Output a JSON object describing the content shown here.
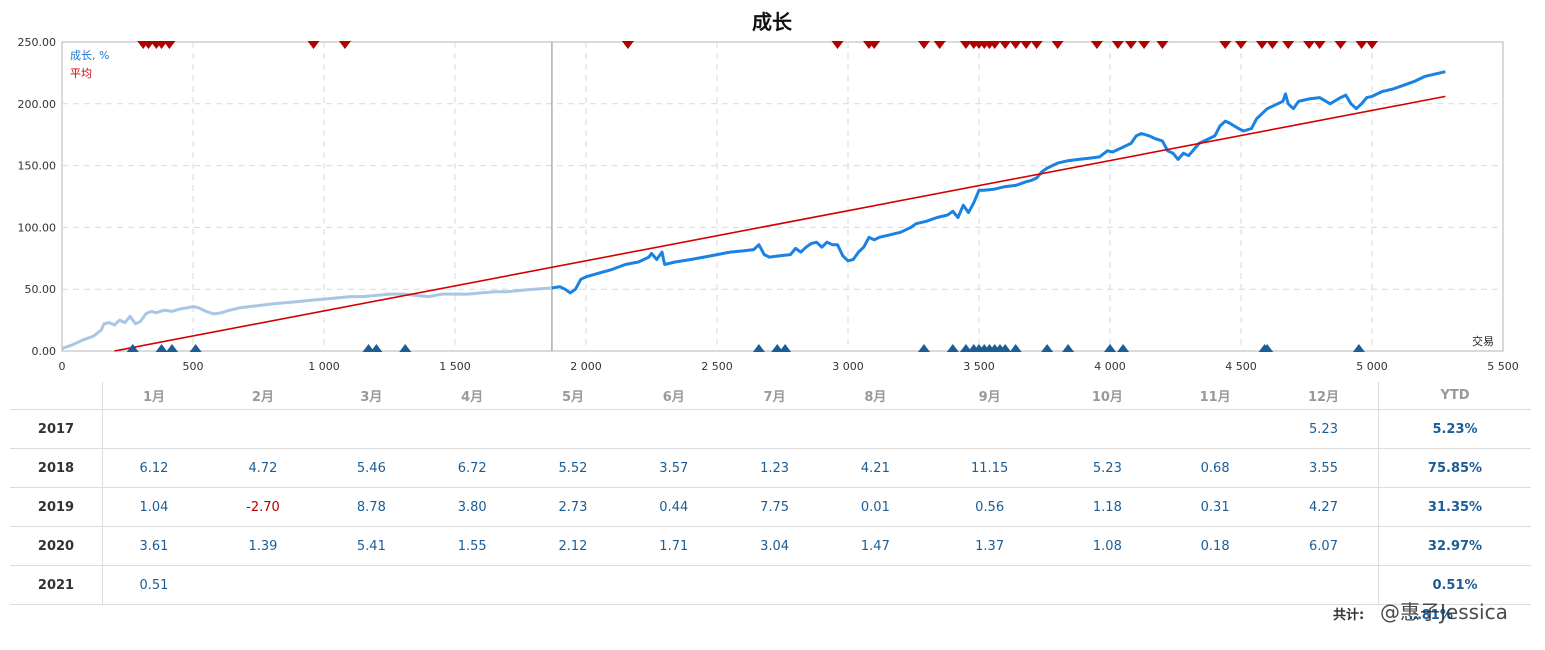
{
  "chart_data": {
    "type": "line",
    "title": "成长",
    "legend": [
      "成长, %",
      "平均"
    ],
    "x_axis_label": "交易",
    "xlim": [
      0,
      5500
    ],
    "ylim": [
      0,
      250
    ],
    "x_ticks": [
      "0",
      "500",
      "1 000",
      "1 500",
      "2 000",
      "2 500",
      "3 000",
      "3 500",
      "4 000",
      "4 500",
      "5 000",
      "5 500"
    ],
    "y_ticks": [
      "0.00",
      "50.00",
      "100.00",
      "150.00",
      "200.00",
      "250.00"
    ],
    "grid": true,
    "legend_position": "top-left",
    "history_split_x": 1870,
    "series": [
      {
        "name": "成长, %",
        "color_history": "#a9c6e4",
        "color": "#1a82e2",
        "points": [
          [
            0,
            2
          ],
          [
            40,
            5
          ],
          [
            80,
            9
          ],
          [
            120,
            12
          ],
          [
            150,
            17
          ],
          [
            160,
            22
          ],
          [
            180,
            23
          ],
          [
            200,
            21
          ],
          [
            220,
            25
          ],
          [
            240,
            23
          ],
          [
            260,
            28
          ],
          [
            280,
            22
          ],
          [
            300,
            24
          ],
          [
            320,
            30
          ],
          [
            340,
            32
          ],
          [
            360,
            31
          ],
          [
            390,
            33
          ],
          [
            420,
            32
          ],
          [
            450,
            34
          ],
          [
            480,
            35
          ],
          [
            500,
            36
          ],
          [
            520,
            35
          ],
          [
            550,
            32
          ],
          [
            580,
            30
          ],
          [
            610,
            31
          ],
          [
            640,
            33
          ],
          [
            680,
            35
          ],
          [
            720,
            36
          ],
          [
            760,
            37
          ],
          [
            800,
            38
          ],
          [
            850,
            39
          ],
          [
            900,
            40
          ],
          [
            950,
            41
          ],
          [
            1000,
            42
          ],
          [
            1050,
            43
          ],
          [
            1100,
            44
          ],
          [
            1150,
            44
          ],
          [
            1200,
            45
          ],
          [
            1250,
            46
          ],
          [
            1300,
            46
          ],
          [
            1350,
            45
          ],
          [
            1400,
            44
          ],
          [
            1450,
            46
          ],
          [
            1500,
            46
          ],
          [
            1550,
            46
          ],
          [
            1600,
            47
          ],
          [
            1650,
            48
          ],
          [
            1700,
            48
          ],
          [
            1750,
            49
          ],
          [
            1800,
            50
          ],
          [
            1870,
            51
          ],
          [
            1870,
            51
          ],
          [
            1900,
            52
          ],
          [
            1920,
            50
          ],
          [
            1940,
            47
          ],
          [
            1960,
            50
          ],
          [
            1980,
            58
          ],
          [
            2000,
            60
          ],
          [
            2050,
            63
          ],
          [
            2100,
            66
          ],
          [
            2150,
            70
          ],
          [
            2200,
            72
          ],
          [
            2240,
            76
          ],
          [
            2250,
            79
          ],
          [
            2270,
            74
          ],
          [
            2290,
            80
          ],
          [
            2300,
            70
          ],
          [
            2340,
            72
          ],
          [
            2400,
            74
          ],
          [
            2450,
            76
          ],
          [
            2500,
            78
          ],
          [
            2550,
            80
          ],
          [
            2600,
            81
          ],
          [
            2640,
            82
          ],
          [
            2660,
            86
          ],
          [
            2680,
            78
          ],
          [
            2700,
            76
          ],
          [
            2740,
            77
          ],
          [
            2780,
            78
          ],
          [
            2800,
            83
          ],
          [
            2820,
            80
          ],
          [
            2840,
            84
          ],
          [
            2860,
            87
          ],
          [
            2880,
            88
          ],
          [
            2900,
            84
          ],
          [
            2920,
            88
          ],
          [
            2940,
            86
          ],
          [
            2960,
            86
          ],
          [
            2980,
            77
          ],
          [
            3000,
            73
          ],
          [
            3020,
            74
          ],
          [
            3040,
            80
          ],
          [
            3060,
            84
          ],
          [
            3080,
            92
          ],
          [
            3100,
            90
          ],
          [
            3120,
            92
          ],
          [
            3160,
            94
          ],
          [
            3200,
            96
          ],
          [
            3240,
            100
          ],
          [
            3260,
            103
          ],
          [
            3300,
            105
          ],
          [
            3340,
            108
          ],
          [
            3380,
            110
          ],
          [
            3400,
            113
          ],
          [
            3420,
            108
          ],
          [
            3440,
            118
          ],
          [
            3460,
            112
          ],
          [
            3480,
            120
          ],
          [
            3500,
            130
          ],
          [
            3520,
            130
          ],
          [
            3560,
            131
          ],
          [
            3600,
            133
          ],
          [
            3640,
            134
          ],
          [
            3680,
            137
          ],
          [
            3700,
            138
          ],
          [
            3720,
            140
          ],
          [
            3740,
            145
          ],
          [
            3760,
            148
          ],
          [
            3800,
            152
          ],
          [
            3840,
            154
          ],
          [
            3880,
            155
          ],
          [
            3920,
            156
          ],
          [
            3960,
            157
          ],
          [
            3990,
            162
          ],
          [
            4010,
            161
          ],
          [
            4050,
            165
          ],
          [
            4080,
            168
          ],
          [
            4100,
            174
          ],
          [
            4120,
            176
          ],
          [
            4150,
            174
          ],
          [
            4170,
            172
          ],
          [
            4200,
            170
          ],
          [
            4220,
            162
          ],
          [
            4240,
            160
          ],
          [
            4260,
            155
          ],
          [
            4280,
            160
          ],
          [
            4300,
            158
          ],
          [
            4340,
            168
          ],
          [
            4380,
            172
          ],
          [
            4400,
            174
          ],
          [
            4420,
            182
          ],
          [
            4440,
            186
          ],
          [
            4460,
            184
          ],
          [
            4490,
            180
          ],
          [
            4510,
            178
          ],
          [
            4540,
            180
          ],
          [
            4560,
            188
          ],
          [
            4580,
            192
          ],
          [
            4600,
            196
          ],
          [
            4620,
            198
          ],
          [
            4640,
            200
          ],
          [
            4660,
            202
          ],
          [
            4670,
            208
          ],
          [
            4680,
            200
          ],
          [
            4700,
            196
          ],
          [
            4720,
            202
          ],
          [
            4740,
            203
          ],
          [
            4760,
            204
          ],
          [
            4800,
            205
          ],
          [
            4840,
            200
          ],
          [
            4880,
            205
          ],
          [
            4900,
            207
          ],
          [
            4920,
            200
          ],
          [
            4940,
            196
          ],
          [
            4960,
            200
          ],
          [
            4980,
            205
          ],
          [
            5000,
            206
          ],
          [
            5040,
            210
          ],
          [
            5080,
            212
          ],
          [
            5120,
            215
          ],
          [
            5160,
            218
          ],
          [
            5200,
            222
          ],
          [
            5240,
            224
          ],
          [
            5280,
            226
          ]
        ]
      },
      {
        "name": "平均",
        "color": "#d40000",
        "points": [
          [
            200,
            0
          ],
          [
            5280,
            206
          ]
        ]
      }
    ],
    "markers": {
      "top_color": "#b00000",
      "bottom_color": "#1c5d96",
      "top_x": [
        310,
        330,
        360,
        380,
        410,
        960,
        1080,
        2160,
        2960,
        3080,
        3100,
        3290,
        3350,
        3450,
        3480,
        3500,
        3520,
        3540,
        3560,
        3600,
        3640,
        3680,
        3720,
        3800,
        3950,
        4030,
        4080,
        4130,
        4200,
        4440,
        4500,
        4580,
        4620,
        4680,
        4760,
        4800,
        4880,
        4960,
        5000
      ],
      "bottom_x": [
        270,
        380,
        420,
        510,
        1170,
        1200,
        1310,
        2660,
        2730,
        2760,
        3290,
        3400,
        3450,
        3480,
        3500,
        3520,
        3540,
        3560,
        3580,
        3600,
        3640,
        3760,
        3840,
        4000,
        4050,
        4590,
        4600,
        4950
      ]
    }
  },
  "table": {
    "months": [
      "1月",
      "2月",
      "3月",
      "4月",
      "5月",
      "6月",
      "7月",
      "8月",
      "9月",
      "10月",
      "11月",
      "12月"
    ],
    "ytd_header": "YTD",
    "rows": [
      {
        "year": "2017",
        "values": [
          "",
          "",
          "",
          "",
          "",
          "",
          "",
          "",
          "",
          "",
          "",
          "5.23"
        ],
        "ytd": "5.23%"
      },
      {
        "year": "2018",
        "values": [
          "6.12",
          "4.72",
          "5.46",
          "6.72",
          "5.52",
          "3.57",
          "1.23",
          "4.21",
          "11.15",
          "5.23",
          "0.68",
          "3.55"
        ],
        "ytd": "75.85%"
      },
      {
        "year": "2019",
        "values": [
          "1.04",
          "-2.70",
          "8.78",
          "3.80",
          "2.73",
          "0.44",
          "7.75",
          "0.01",
          "0.56",
          "1.18",
          "0.31",
          "4.27"
        ],
        "ytd": "31.35%"
      },
      {
        "year": "2020",
        "values": [
          "3.61",
          "1.39",
          "5.41",
          "1.55",
          "2.12",
          "1.71",
          "3.04",
          "1.47",
          "1.37",
          "1.08",
          "0.18",
          "6.07"
        ],
        "ytd": "32.97%"
      },
      {
        "year": "2021",
        "values": [
          "0.51",
          "",
          "",
          "",
          "",
          "",
          "",
          "",
          "",
          "",
          "",
          ""
        ],
        "ytd": "0.51%"
      }
    ],
    "total_label": "共计:",
    "total_value": "…81%"
  },
  "watermark": "@惠子Jessica"
}
